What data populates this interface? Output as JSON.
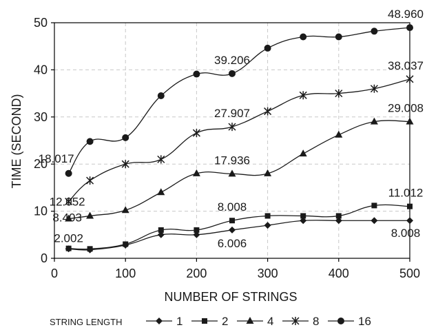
{
  "chart_data": {
    "type": "line",
    "xlabel": "NUMBER OF STRINGS",
    "ylabel": "TIME (SECOND)",
    "xlim": [
      0,
      500
    ],
    "ylim": [
      0,
      50
    ],
    "xticks": [
      0,
      100,
      200,
      300,
      400,
      500
    ],
    "yticks": [
      0,
      10,
      20,
      30,
      40,
      50
    ],
    "grid": true,
    "legend_title": "STRING LENGTH",
    "legend_position": "bottom",
    "x": [
      20,
      50,
      100,
      150,
      200,
      250,
      300,
      350,
      400,
      450,
      500
    ],
    "series": [
      {
        "name": "1",
        "marker": "diamond",
        "values": [
          2.002,
          1.8,
          2.8,
          5.0,
          5.0,
          6.006,
          7.0,
          8.0,
          8.0,
          8.0,
          8.008
        ]
      },
      {
        "name": "2",
        "marker": "square",
        "values": [
          2.1,
          2.0,
          3.0,
          6.0,
          6.0,
          8.008,
          9.0,
          9.0,
          9.0,
          11.2,
          11.012
        ]
      },
      {
        "name": "4",
        "marker": "triangle",
        "values": [
          8.403,
          9.0,
          10.2,
          14.0,
          18.0,
          17.936,
          18.0,
          22.2,
          26.2,
          29.0,
          29.008
        ]
      },
      {
        "name": "8",
        "marker": "asterisk",
        "values": [
          12.052,
          16.5,
          20.0,
          21.0,
          26.6,
          27.907,
          31.2,
          34.6,
          35.0,
          36.0,
          38.037
        ]
      },
      {
        "name": "16",
        "marker": "circle",
        "values": [
          18.017,
          24.8,
          25.6,
          34.5,
          39.1,
          39.206,
          44.6,
          47.0,
          47.0,
          48.2,
          48.96
        ]
      }
    ],
    "annotations": [
      {
        "text": "48.960",
        "x": 500,
        "y": 48.96
      },
      {
        "text": "39.206",
        "x": 250,
        "y": 39.206
      },
      {
        "text": "38.037",
        "x": 500,
        "y": 38.037
      },
      {
        "text": "27.907",
        "x": 250,
        "y": 27.907
      },
      {
        "text": "29.008",
        "x": 500,
        "y": 29.008
      },
      {
        "text": "18.017",
        "x": 20,
        "y": 18.017
      },
      {
        "text": "17.936",
        "x": 250,
        "y": 17.936
      },
      {
        "text": "12.052",
        "x": 20,
        "y": 12.052
      },
      {
        "text": "8.403",
        "x": 20,
        "y": 8.403
      },
      {
        "text": "8.008",
        "x": 250,
        "y": 8.008
      },
      {
        "text": "11.012",
        "x": 500,
        "y": 11.012
      },
      {
        "text": "2.002",
        "x": 20,
        "y": 2.002
      },
      {
        "text": "6.006",
        "x": 250,
        "y": 6.006
      },
      {
        "text": "8.008",
        "x": 500,
        "y": 8.008
      }
    ]
  }
}
